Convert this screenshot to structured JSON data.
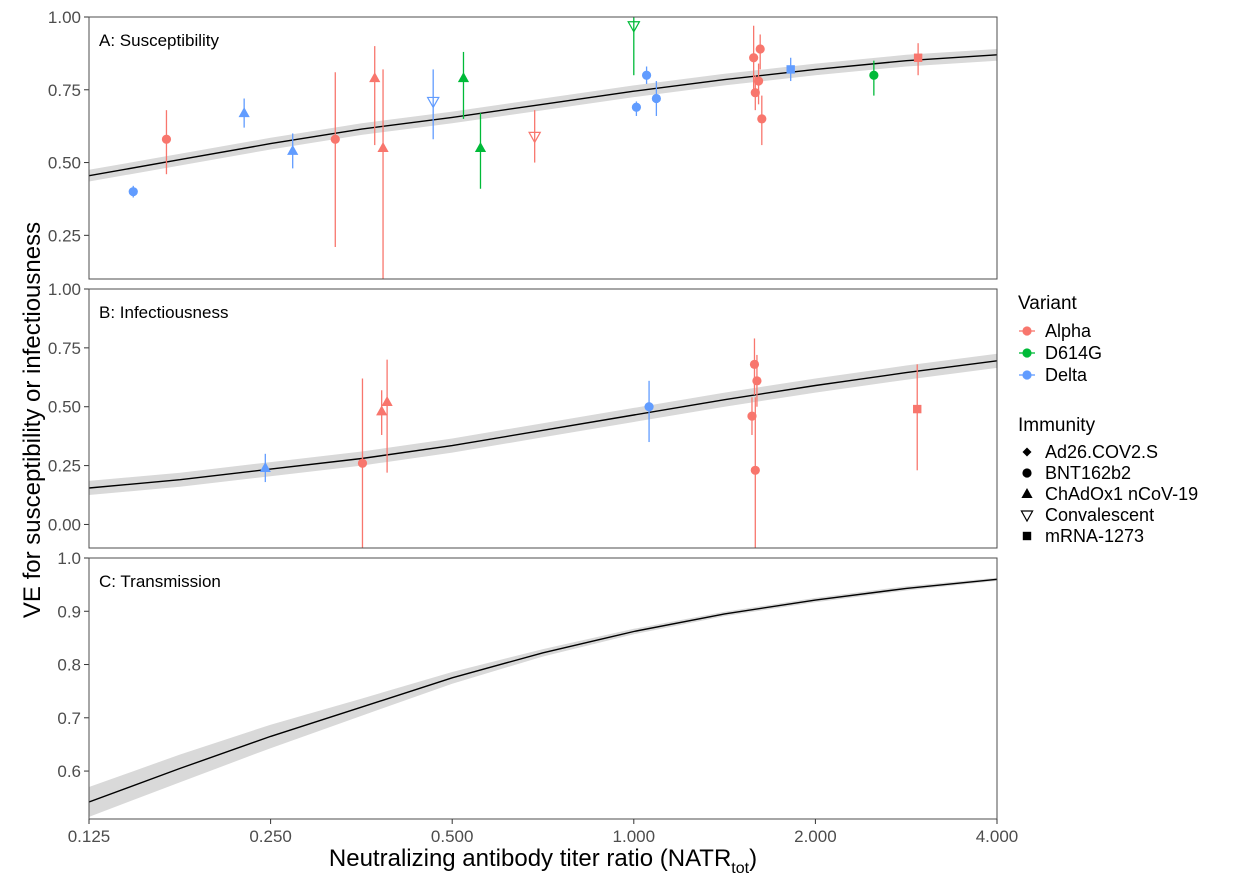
{
  "chart_data": {
    "type": "scatter",
    "xlabel": "Neutralizing antibody titer ratio (NATR",
    "xlabel_subscript": "tot",
    "xlabel_close": ")",
    "ylabel": "VE for susceptibility or infectiousness",
    "x_scale": "log2",
    "xlim": [
      0.125,
      4.0
    ],
    "x_ticks": [
      0.125,
      0.25,
      0.5,
      1.0,
      2.0,
      4.0
    ],
    "x_tick_labels": [
      "0.125",
      "0.250",
      "0.500",
      "1.000",
      "2.000",
      "4.000"
    ],
    "variant_colors": {
      "Alpha": "#F8766D",
      "D614G": "#00BA38",
      "Delta": "#619CFF"
    },
    "curve_color": "#000000",
    "band_color": "#d9d9d9",
    "legend": {
      "placement": "right",
      "variant_title": "Variant",
      "variants": [
        "Alpha",
        "D614G",
        "Delta"
      ],
      "immunity_title": "Immunity",
      "immunity": [
        {
          "label": "Ad26.COV2.S",
          "shape": "diamond"
        },
        {
          "label": "BNT162b2",
          "shape": "circle"
        },
        {
          "label": "ChAdOx1 nCoV-19",
          "shape": "triangle"
        },
        {
          "label": "Convalescent",
          "shape": "triangle-down-open"
        },
        {
          "label": "mRNA-1273",
          "shape": "square"
        }
      ]
    },
    "panels": [
      {
        "key": "A",
        "title": "A: Susceptibility",
        "ylim": [
          0.1,
          1.0
        ],
        "y_ticks": [
          0.25,
          0.5,
          0.75,
          1.0
        ],
        "y_tick_labels": [
          "0.25",
          "0.50",
          "0.75",
          "1.00"
        ],
        "curve": [
          [
            0.125,
            0.455
          ],
          [
            0.177,
            0.51
          ],
          [
            0.25,
            0.565
          ],
          [
            0.354,
            0.615
          ],
          [
            0.5,
            0.655
          ],
          [
            0.707,
            0.7
          ],
          [
            1.0,
            0.745
          ],
          [
            1.414,
            0.785
          ],
          [
            2.0,
            0.82
          ],
          [
            2.83,
            0.85
          ],
          [
            4.0,
            0.87
          ]
        ],
        "band_halfwidth": 0.02,
        "points": [
          {
            "x": 0.148,
            "y": 0.4,
            "lo": 0.38,
            "hi": 0.42,
            "variant": "Delta",
            "immunity": "BNT162b2"
          },
          {
            "x": 0.168,
            "y": 0.58,
            "lo": 0.46,
            "hi": 0.68,
            "variant": "Alpha",
            "immunity": "BNT162b2"
          },
          {
            "x": 0.226,
            "y": 0.67,
            "lo": 0.62,
            "hi": 0.72,
            "variant": "Delta",
            "immunity": "ChAdOx1 nCoV-19"
          },
          {
            "x": 0.272,
            "y": 0.54,
            "lo": 0.48,
            "hi": 0.6,
            "variant": "Delta",
            "immunity": "ChAdOx1 nCoV-19"
          },
          {
            "x": 0.32,
            "y": 0.58,
            "lo": 0.21,
            "hi": 0.81,
            "variant": "Alpha",
            "immunity": "BNT162b2"
          },
          {
            "x": 0.372,
            "y": 0.79,
            "lo": 0.56,
            "hi": 0.9,
            "variant": "Alpha",
            "immunity": "ChAdOx1 nCoV-19"
          },
          {
            "x": 0.384,
            "y": 0.55,
            "lo": 0.1,
            "hi": 0.82,
            "variant": "Alpha",
            "immunity": "ChAdOx1 nCoV-19"
          },
          {
            "x": 0.465,
            "y": 0.71,
            "lo": 0.58,
            "hi": 0.82,
            "variant": "Delta",
            "immunity": "Convalescent"
          },
          {
            "x": 0.522,
            "y": 0.79,
            "lo": 0.65,
            "hi": 0.88,
            "variant": "D614G",
            "immunity": "ChAdOx1 nCoV-19"
          },
          {
            "x": 0.557,
            "y": 0.55,
            "lo": 0.41,
            "hi": 0.67,
            "variant": "D614G",
            "immunity": "ChAdOx1 nCoV-19"
          },
          {
            "x": 0.685,
            "y": 0.59,
            "lo": 0.5,
            "hi": 0.68,
            "variant": "Alpha",
            "immunity": "Convalescent"
          },
          {
            "x": 1.0,
            "y": 0.97,
            "lo": 0.8,
            "hi": 1.0,
            "variant": "D614G",
            "immunity": "Convalescent"
          },
          {
            "x": 1.01,
            "y": 0.69,
            "lo": 0.66,
            "hi": 0.71,
            "variant": "Delta",
            "immunity": "BNT162b2"
          },
          {
            "x": 1.05,
            "y": 0.8,
            "lo": 0.77,
            "hi": 0.83,
            "variant": "Delta",
            "immunity": "BNT162b2"
          },
          {
            "x": 1.09,
            "y": 0.72,
            "lo": 0.66,
            "hi": 0.78,
            "variant": "Delta",
            "immunity": "BNT162b2"
          },
          {
            "x": 1.58,
            "y": 0.86,
            "lo": 0.74,
            "hi": 0.97,
            "variant": "Alpha",
            "immunity": "BNT162b2"
          },
          {
            "x": 1.59,
            "y": 0.74,
            "lo": 0.68,
            "hi": 0.8,
            "variant": "Alpha",
            "immunity": "BNT162b2"
          },
          {
            "x": 1.61,
            "y": 0.78,
            "lo": 0.7,
            "hi": 0.84,
            "variant": "Alpha",
            "immunity": "BNT162b2"
          },
          {
            "x": 1.62,
            "y": 0.89,
            "lo": 0.82,
            "hi": 0.94,
            "variant": "Alpha",
            "immunity": "BNT162b2"
          },
          {
            "x": 1.63,
            "y": 0.65,
            "lo": 0.56,
            "hi": 0.73,
            "variant": "Alpha",
            "immunity": "BNT162b2"
          },
          {
            "x": 1.82,
            "y": 0.82,
            "lo": 0.78,
            "hi": 0.86,
            "variant": "Delta",
            "immunity": "mRNA-1273"
          },
          {
            "x": 2.5,
            "y": 0.8,
            "lo": 0.73,
            "hi": 0.85,
            "variant": "D614G",
            "immunity": "BNT162b2"
          },
          {
            "x": 2.96,
            "y": 0.86,
            "lo": 0.8,
            "hi": 0.91,
            "variant": "Alpha",
            "immunity": "mRNA-1273"
          }
        ]
      },
      {
        "key": "B",
        "title": "B: Infectiousness",
        "ylim": [
          -0.1,
          1.0
        ],
        "y_ticks": [
          0.0,
          0.25,
          0.5,
          0.75,
          1.0
        ],
        "y_tick_labels": [
          "0.00",
          "0.25",
          "0.50",
          "0.75",
          "1.00"
        ],
        "curve": [
          [
            0.125,
            0.155
          ],
          [
            0.177,
            0.19
          ],
          [
            0.25,
            0.235
          ],
          [
            0.354,
            0.28
          ],
          [
            0.5,
            0.335
          ],
          [
            0.707,
            0.4
          ],
          [
            1.0,
            0.465
          ],
          [
            1.414,
            0.53
          ],
          [
            2.0,
            0.59
          ],
          [
            2.83,
            0.645
          ],
          [
            4.0,
            0.695
          ]
        ],
        "band_halfwidth": 0.03,
        "points": [
          {
            "x": 0.245,
            "y": 0.24,
            "lo": 0.18,
            "hi": 0.3,
            "variant": "Delta",
            "immunity": "ChAdOx1 nCoV-19"
          },
          {
            "x": 0.355,
            "y": 0.26,
            "lo": -0.1,
            "hi": 0.62,
            "variant": "Alpha",
            "immunity": "BNT162b2"
          },
          {
            "x": 0.382,
            "y": 0.48,
            "lo": 0.38,
            "hi": 0.57,
            "variant": "Alpha",
            "immunity": "ChAdOx1 nCoV-19"
          },
          {
            "x": 0.39,
            "y": 0.52,
            "lo": 0.22,
            "hi": 0.7,
            "variant": "Alpha",
            "immunity": "ChAdOx1 nCoV-19"
          },
          {
            "x": 1.06,
            "y": 0.5,
            "lo": 0.35,
            "hi": 0.61,
            "variant": "Delta",
            "immunity": "BNT162b2"
          },
          {
            "x": 1.57,
            "y": 0.46,
            "lo": 0.38,
            "hi": 0.54,
            "variant": "Alpha",
            "immunity": "BNT162b2"
          },
          {
            "x": 1.585,
            "y": 0.68,
            "lo": 0.55,
            "hi": 0.79,
            "variant": "Alpha",
            "immunity": "BNT162b2"
          },
          {
            "x": 1.6,
            "y": 0.61,
            "lo": 0.5,
            "hi": 0.72,
            "variant": "Alpha",
            "immunity": "BNT162b2"
          },
          {
            "x": 1.59,
            "y": 0.23,
            "lo": -0.1,
            "hi": 0.54,
            "variant": "Alpha",
            "immunity": "BNT162b2"
          },
          {
            "x": 2.95,
            "y": 0.49,
            "lo": 0.23,
            "hi": 0.68,
            "variant": "Alpha",
            "immunity": "mRNA-1273"
          }
        ]
      },
      {
        "key": "C",
        "title": "C: Transmission",
        "ylim": [
          0.51,
          1.0
        ],
        "y_ticks": [
          0.6,
          0.7,
          0.8,
          0.9,
          1.0
        ],
        "y_tick_labels": [
          "0.6",
          "0.7",
          "0.8",
          "0.9",
          "1.0"
        ],
        "curve": [
          [
            0.125,
            0.542
          ],
          [
            0.177,
            0.605
          ],
          [
            0.25,
            0.665
          ],
          [
            0.354,
            0.72
          ],
          [
            0.5,
            0.775
          ],
          [
            0.707,
            0.822
          ],
          [
            1.0,
            0.862
          ],
          [
            1.414,
            0.895
          ],
          [
            2.0,
            0.921
          ],
          [
            2.83,
            0.943
          ],
          [
            4.0,
            0.96
          ]
        ],
        "band_halfwidth": [
          0.028,
          0.026,
          0.022,
          0.016,
          0.011,
          0.007,
          0.005,
          0.004,
          0.004,
          0.004,
          0.003
        ],
        "points": []
      }
    ]
  }
}
